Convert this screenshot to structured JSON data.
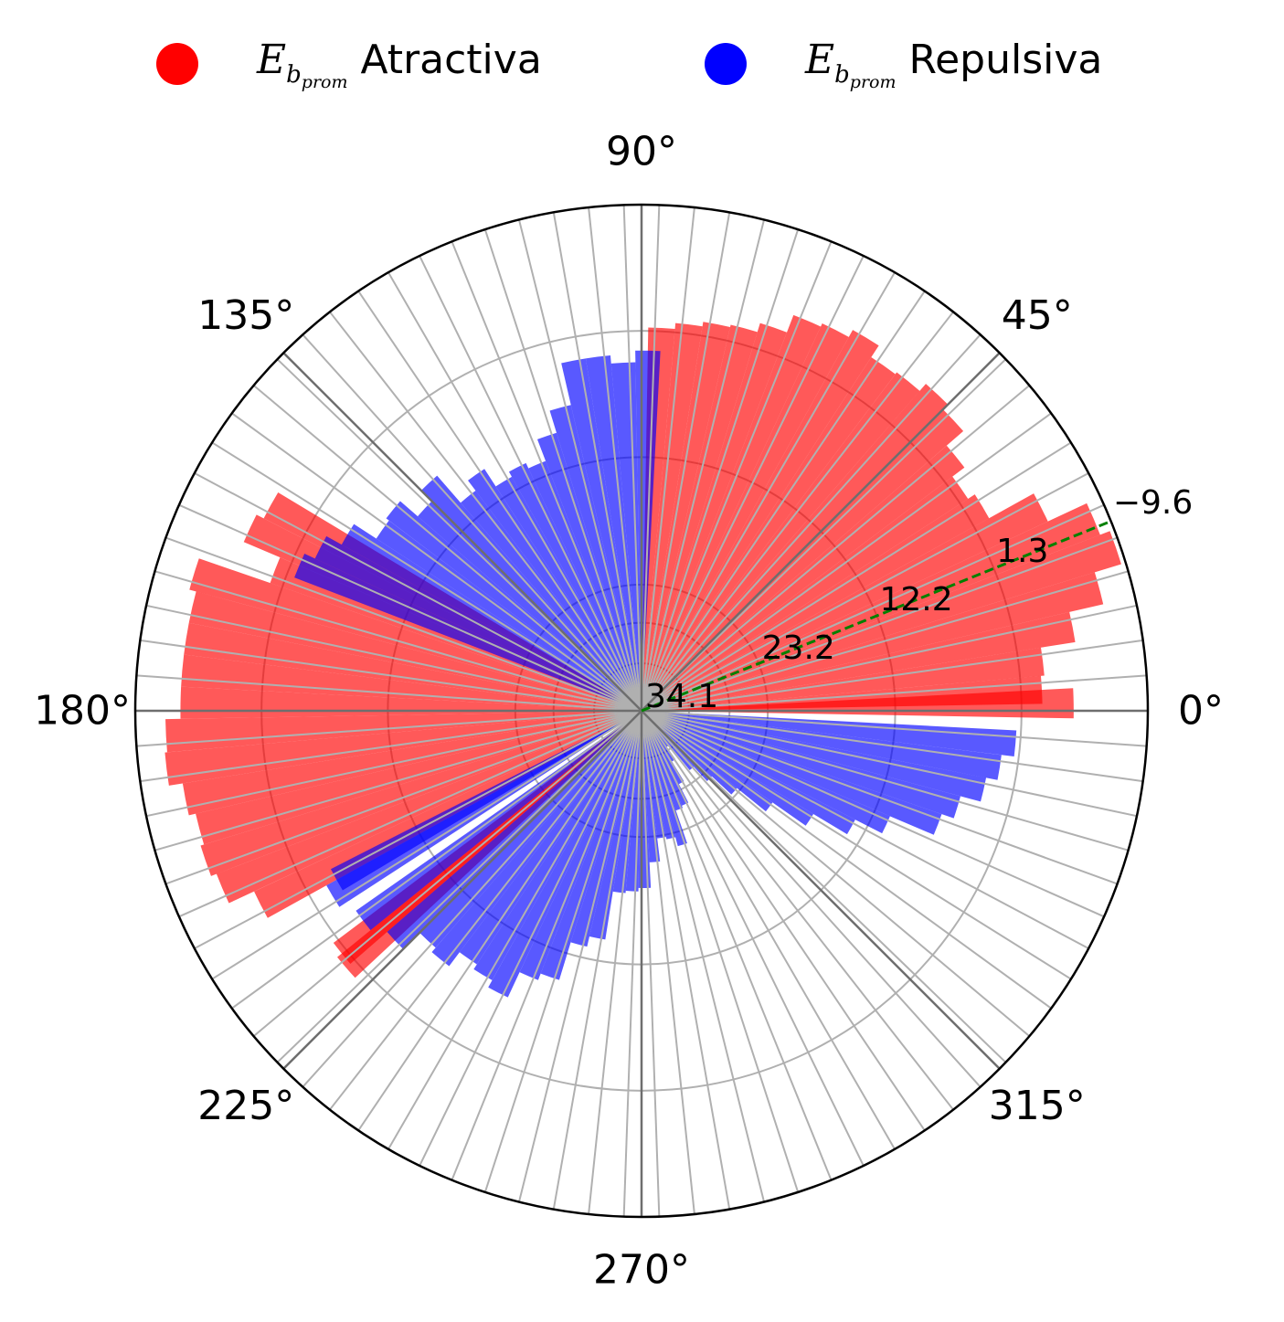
{
  "legend": {
    "items": [
      {
        "symbol": "E",
        "sub": "b",
        "subsub": "prom",
        "label": "Atractiva",
        "color": "#ff0000"
      },
      {
        "symbol": "E",
        "sub": "b",
        "subsub": "prom",
        "label": "Repulsiva",
        "color": "#0000ff"
      }
    ]
  },
  "chart_data": {
    "type": "polar-bar",
    "angle_ticks": [
      "0°",
      "45°",
      "90°",
      "135°",
      "180°",
      "225°",
      "270°",
      "315°"
    ],
    "radial_ticks": [
      "34.1",
      "23.2",
      "12.2",
      "1.3",
      "−9.6"
    ],
    "radial_tick_values": [
      34.1,
      23.2,
      12.2,
      1.3,
      -9.6
    ],
    "radial_axis_inverted": true,
    "radial_range": [
      34.1,
      -9.6
    ],
    "bin_width_deg": 4,
    "reference_line": {
      "angle_deg": 22,
      "style": "dashed",
      "color": "#008000"
    },
    "series": [
      {
        "name": "Atractiva",
        "color": "#ff0000",
        "opacity": 0.65,
        "bars": [
          {
            "theta": 1,
            "e": -3.2
          },
          {
            "theta": 3,
            "e": -0.5
          },
          {
            "theta": 7,
            "e": -0.8
          },
          {
            "theta": 11,
            "e": -3.8
          },
          {
            "theta": 15,
            "e": -6.8
          },
          {
            "theta": 19,
            "e": -9.2
          },
          {
            "theta": 23,
            "e": -8.3
          },
          {
            "theta": 27,
            "e": -4.6
          },
          {
            "theta": 31,
            "e": -0.2
          },
          {
            "theta": 35,
            "e": 0.5
          },
          {
            "theta": 39,
            "e": -0.8
          },
          {
            "theta": 43,
            "e": -2.7
          },
          {
            "theta": 47,
            "e": -3.3
          },
          {
            "theta": 51,
            "e": -2.5
          },
          {
            "theta": 55,
            "e": -2.3
          },
          {
            "theta": 59,
            "e": -3.5
          },
          {
            "theta": 63,
            "e": -2.8
          },
          {
            "theta": 67,
            "e": -2.5
          },
          {
            "theta": 71,
            "e": -0.9
          },
          {
            "theta": 75,
            "e": -0.1
          },
          {
            "theta": 79,
            "e": 0.1
          },
          {
            "theta": 83,
            "e": 0.5
          },
          {
            "theta": 87,
            "e": 1.0
          },
          {
            "theta": 151,
            "e": -2.5
          },
          {
            "theta": 155,
            "e": -3.2
          },
          {
            "theta": 159,
            "e": 0.2
          },
          {
            "theta": 163,
            "e": -6.3
          },
          {
            "theta": 167,
            "e": -5.7
          },
          {
            "theta": 171,
            "e": -5.7
          },
          {
            "theta": 175,
            "e": -5.7
          },
          {
            "theta": 179,
            "e": -5.7
          },
          {
            "theta": 183,
            "e": -7.0
          },
          {
            "theta": 187,
            "e": -7.2
          },
          {
            "theta": 191,
            "e": -6.0
          },
          {
            "theta": 195,
            "e": -5.4
          },
          {
            "theta": 199,
            "e": -5.7
          },
          {
            "theta": 203,
            "e": -5.2
          },
          {
            "theta": 207,
            "e": -2.8
          },
          {
            "theta": 219,
            "e": 0.8
          },
          {
            "theta": 221,
            "e": 0.3
          }
        ]
      },
      {
        "name": "Repulsiva",
        "color": "#0000ff",
        "opacity": 0.65,
        "bars": [
          {
            "theta": 89,
            "e": 3.0
          },
          {
            "theta": 93,
            "e": 4.0
          },
          {
            "theta": 97,
            "e": 3.3
          },
          {
            "theta": 101,
            "e": 3.3
          },
          {
            "theta": 105,
            "e": 7.0
          },
          {
            "theta": 109,
            "e": 9.0
          },
          {
            "theta": 113,
            "e": 11.0
          },
          {
            "theta": 117,
            "e": 10.5
          },
          {
            "theta": 121,
            "e": 11.0
          },
          {
            "theta": 125,
            "e": 9.2
          },
          {
            "theta": 129,
            "e": 10.3
          },
          {
            "theta": 133,
            "e": 7.2
          },
          {
            "theta": 137,
            "e": 8.5
          },
          {
            "theta": 141,
            "e": 6.5
          },
          {
            "theta": 145,
            "e": 6.8
          },
          {
            "theta": 149,
            "e": 4.5
          },
          {
            "theta": 153,
            "e": 3.0
          },
          {
            "theta": 157,
            "e": 2.0
          },
          {
            "theta": 209,
            "e": 4.0
          },
          {
            "theta": 211,
            "e": 3.0
          },
          {
            "theta": 217,
            "e": 4.0
          },
          {
            "theta": 223,
            "e": 5.0
          },
          {
            "theta": 227,
            "e": 7.0
          },
          {
            "theta": 231,
            "e": 6.5
          },
          {
            "theta": 235,
            "e": 8.0
          },
          {
            "theta": 239,
            "e": 7.5
          },
          {
            "theta": 243,
            "e": 6.8
          },
          {
            "theta": 247,
            "e": 9.2
          },
          {
            "theta": 251,
            "e": 9.8
          },
          {
            "theta": 255,
            "e": 13.2
          },
          {
            "theta": 259,
            "e": 14.1
          },
          {
            "theta": 263,
            "e": 18.3
          },
          {
            "theta": 267,
            "e": 18.5
          },
          {
            "theta": 271,
            "e": 18.8
          },
          {
            "theta": 275,
            "e": 21.0
          },
          {
            "theta": 279,
            "e": 23.0
          },
          {
            "theta": 283,
            "e": 22.8
          },
          {
            "theta": 287,
            "e": 22.0
          },
          {
            "theta": 291,
            "e": 25.0
          },
          {
            "theta": 295,
            "e": 25.2
          },
          {
            "theta": 299,
            "e": 27.0
          },
          {
            "theta": 303,
            "e": 29.0
          },
          {
            "theta": 307,
            "e": 30.3
          },
          {
            "theta": 311,
            "e": 27.5
          },
          {
            "theta": 315,
            "e": 25.8
          },
          {
            "theta": 319,
            "e": 23.5
          },
          {
            "theta": 323,
            "e": 20.3
          },
          {
            "theta": 327,
            "e": 16.8
          },
          {
            "theta": 331,
            "e": 13.4
          },
          {
            "theta": 335,
            "e": 10.8
          },
          {
            "theta": 339,
            "e": 6.7
          },
          {
            "theta": 343,
            "e": 5.6
          },
          {
            "theta": 347,
            "e": 3.8
          },
          {
            "theta": 351,
            "e": 2.8
          },
          {
            "theta": 355,
            "e": 1.7
          }
        ]
      }
    ]
  }
}
